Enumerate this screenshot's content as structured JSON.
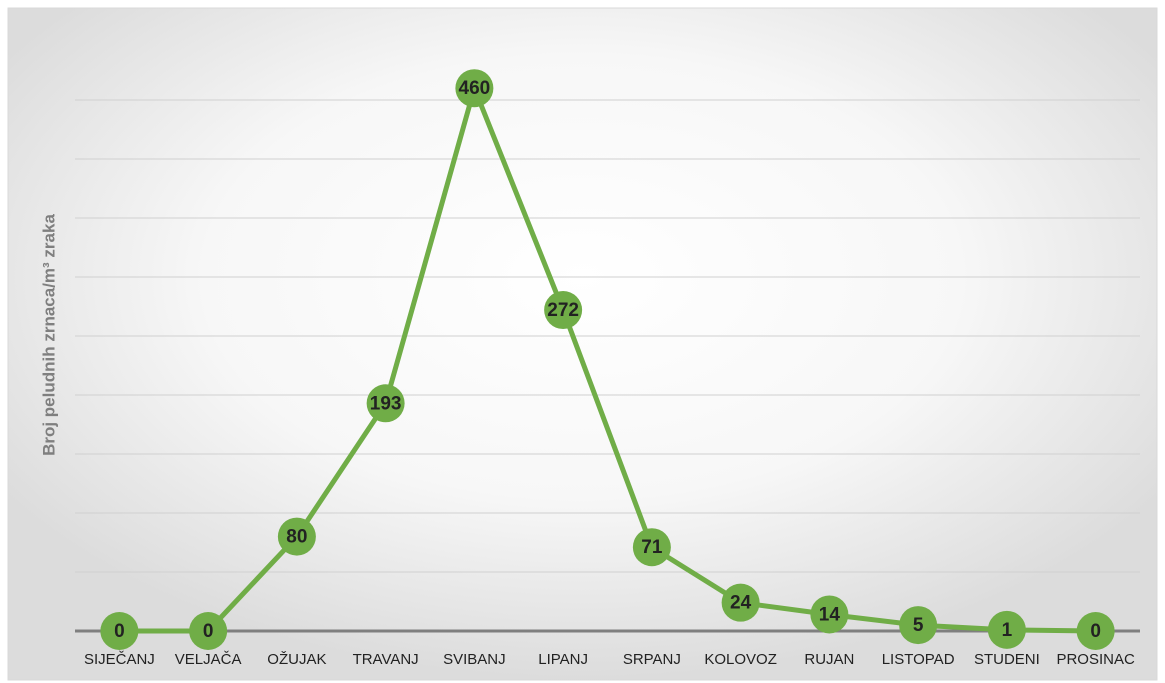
{
  "chart_data": {
    "type": "line",
    "y_label": "Broj peludnih zrnaca/m³ zraka",
    "categories": [
      "SIJEČANJ",
      "VELJAČA",
      "OŽUJAK",
      "TRAVANJ",
      "SVIBANJ",
      "LIPANJ",
      "SRPANJ",
      "KOLOVOZ",
      "RUJAN",
      "LISTOPAD",
      "STUDENI",
      "PROSINAC"
    ],
    "values": [
      0,
      0,
      80,
      193,
      460,
      272,
      71,
      24,
      14,
      5,
      1,
      0
    ],
    "color": "#70ad47",
    "ylim": [
      0,
      500
    ],
    "yticks": [
      0,
      50,
      100,
      150,
      200,
      250,
      300,
      350,
      400,
      450
    ],
    "grid": true
  }
}
